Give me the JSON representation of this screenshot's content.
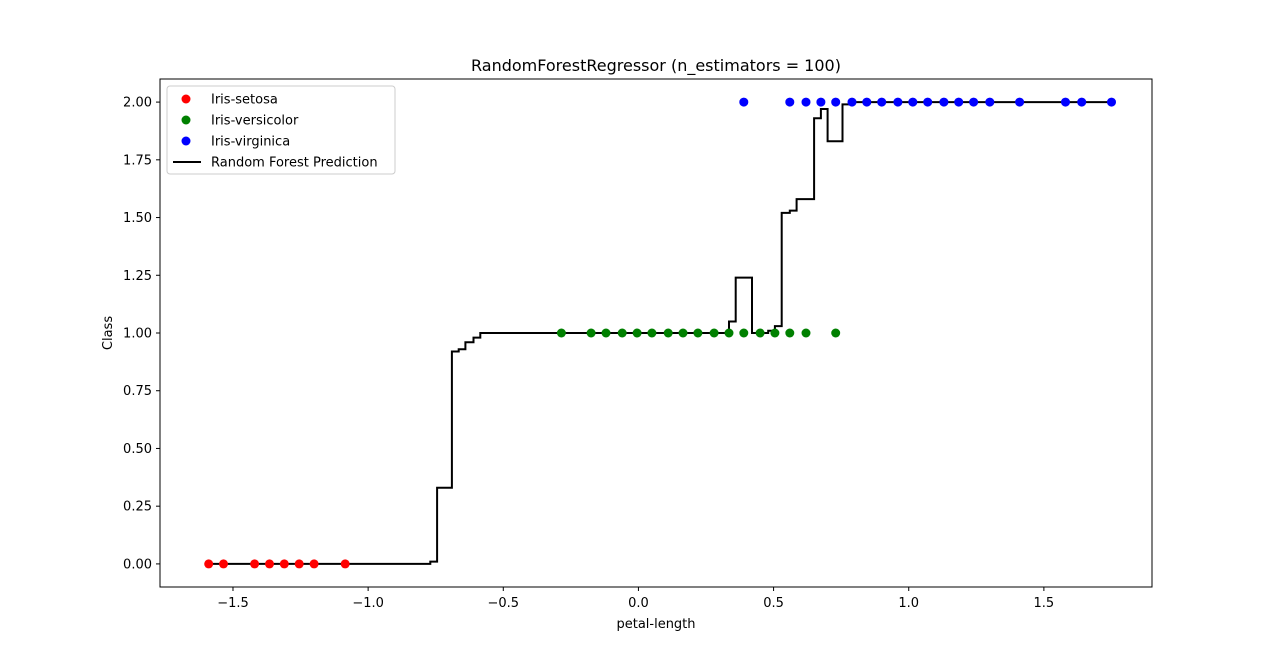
{
  "chart_data": {
    "type": "scatter",
    "title": "RandomForestRegressor (n_estimators = 100)",
    "xlabel": "petal-length",
    "ylabel": "Class",
    "xlim": [
      -1.77,
      1.9
    ],
    "ylim": [
      -0.1,
      2.1
    ],
    "x_ticks": [
      {
        "value": -1.5,
        "label": "−1.5"
      },
      {
        "value": -1.0,
        "label": "−1.0"
      },
      {
        "value": -0.5,
        "label": "−0.5"
      },
      {
        "value": 0.0,
        "label": "0.0"
      },
      {
        "value": 0.5,
        "label": "0.5"
      },
      {
        "value": 1.0,
        "label": "1.0"
      },
      {
        "value": 1.5,
        "label": "1.5"
      }
    ],
    "y_ticks": [
      {
        "value": 0.0,
        "label": "0.00"
      },
      {
        "value": 0.25,
        "label": "0.25"
      },
      {
        "value": 0.5,
        "label": "0.50"
      },
      {
        "value": 0.75,
        "label": "0.75"
      },
      {
        "value": 1.0,
        "label": "1.00"
      },
      {
        "value": 1.25,
        "label": "1.25"
      },
      {
        "value": 1.5,
        "label": "1.50"
      },
      {
        "value": 1.75,
        "label": "1.75"
      },
      {
        "value": 2.0,
        "label": "2.00"
      }
    ],
    "grid": false,
    "legend_position": "top-left",
    "series": [
      {
        "name": "Iris-setosa",
        "kind": "scatter",
        "color": "#ff0000",
        "points": [
          [
            -1.59,
            0
          ],
          [
            -1.535,
            0
          ],
          [
            -1.42,
            0
          ],
          [
            -1.365,
            0
          ],
          [
            -1.31,
            0
          ],
          [
            -1.255,
            0
          ],
          [
            -1.2,
            0
          ],
          [
            -1.085,
            0
          ]
        ]
      },
      {
        "name": "Iris-versicolor",
        "kind": "scatter",
        "color": "#008000",
        "points": [
          [
            -0.285,
            1
          ],
          [
            -0.175,
            1
          ],
          [
            -0.12,
            1
          ],
          [
            -0.06,
            1
          ],
          [
            -0.005,
            1
          ],
          [
            0.05,
            1
          ],
          [
            0.11,
            1
          ],
          [
            0.165,
            1
          ],
          [
            0.22,
            1
          ],
          [
            0.28,
            1
          ],
          [
            0.335,
            1
          ],
          [
            0.39,
            1
          ],
          [
            0.45,
            1
          ],
          [
            0.505,
            1
          ],
          [
            0.56,
            1
          ],
          [
            0.62,
            1
          ],
          [
            0.73,
            1
          ]
        ]
      },
      {
        "name": "Iris-virginica",
        "kind": "scatter",
        "color": "#0000ff",
        "points": [
          [
            0.39,
            2
          ],
          [
            0.56,
            2
          ],
          [
            0.62,
            2
          ],
          [
            0.675,
            2
          ],
          [
            0.73,
            2
          ],
          [
            0.79,
            2
          ],
          [
            0.845,
            2
          ],
          [
            0.9,
            2
          ],
          [
            0.96,
            2
          ],
          [
            1.015,
            2
          ],
          [
            1.07,
            2
          ],
          [
            1.13,
            2
          ],
          [
            1.185,
            2
          ],
          [
            1.24,
            2
          ],
          [
            1.3,
            2
          ],
          [
            1.41,
            2
          ],
          [
            1.58,
            2
          ],
          [
            1.64,
            2
          ],
          [
            1.75,
            2
          ]
        ]
      },
      {
        "name": "Random Forest Prediction",
        "kind": "step-line",
        "color": "#000000",
        "points": [
          [
            -1.59,
            0
          ],
          [
            -0.77,
            0
          ],
          [
            -0.77,
            0.01
          ],
          [
            -0.745,
            0.01
          ],
          [
            -0.745,
            0.33
          ],
          [
            -0.69,
            0.33
          ],
          [
            -0.69,
            0.92
          ],
          [
            -0.665,
            0.92
          ],
          [
            -0.665,
            0.93
          ],
          [
            -0.64,
            0.93
          ],
          [
            -0.64,
            0.96
          ],
          [
            -0.61,
            0.96
          ],
          [
            -0.61,
            0.98
          ],
          [
            -0.585,
            0.98
          ],
          [
            -0.585,
            1.0
          ],
          [
            0.335,
            1.0
          ],
          [
            0.335,
            1.05
          ],
          [
            0.36,
            1.05
          ],
          [
            0.36,
            1.24
          ],
          [
            0.42,
            1.24
          ],
          [
            0.42,
            1.0
          ],
          [
            0.48,
            1.0
          ],
          [
            0.48,
            1.01
          ],
          [
            0.505,
            1.01
          ],
          [
            0.505,
            1.03
          ],
          [
            0.53,
            1.03
          ],
          [
            0.53,
            1.52
          ],
          [
            0.56,
            1.52
          ],
          [
            0.56,
            1.53
          ],
          [
            0.585,
            1.53
          ],
          [
            0.585,
            1.58
          ],
          [
            0.65,
            1.58
          ],
          [
            0.65,
            1.93
          ],
          [
            0.675,
            1.93
          ],
          [
            0.675,
            1.97
          ],
          [
            0.7,
            1.97
          ],
          [
            0.7,
            1.83
          ],
          [
            0.755,
            1.83
          ],
          [
            0.755,
            1.99
          ],
          [
            0.78,
            1.99
          ],
          [
            0.78,
            2.0
          ],
          [
            1.75,
            2.0
          ]
        ]
      }
    ]
  }
}
